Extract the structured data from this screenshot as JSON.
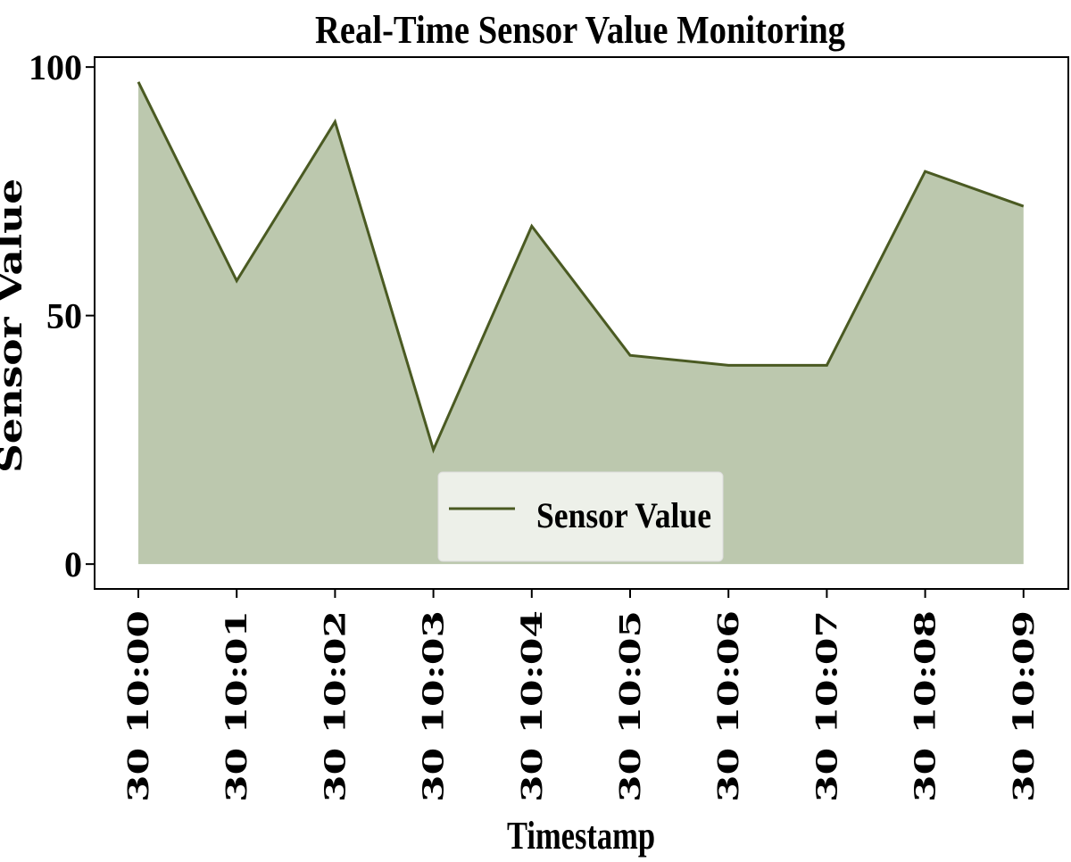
{
  "chart_data": {
    "type": "area",
    "title": "Real-Time Sensor Value Monitoring",
    "xlabel": "Timestamp",
    "ylabel": "Sensor Value",
    "categories": [
      "30 10:00",
      "30 10:01",
      "30 10:02",
      "30 10:03",
      "30 10:04",
      "30 10:05",
      "30 10:06",
      "30 10:07",
      "30 10:08",
      "30 10:09"
    ],
    "series": [
      {
        "name": "Sensor Value",
        "values": [
          97,
          57,
          89,
          23,
          68,
          42,
          40,
          40,
          79,
          72
        ]
      }
    ],
    "yticks": [
      0,
      50,
      100
    ],
    "ytick_labels": [
      "0",
      "50",
      "100"
    ],
    "ylim": [
      -5,
      102
    ],
    "grid": false,
    "legend_position": "lower center",
    "colors": {
      "line": "#4a5a22",
      "fill": "#bcc8ae",
      "frame": "#000000",
      "legend_bg": "#f1f3ee",
      "legend_border": "#dddddd"
    }
  }
}
